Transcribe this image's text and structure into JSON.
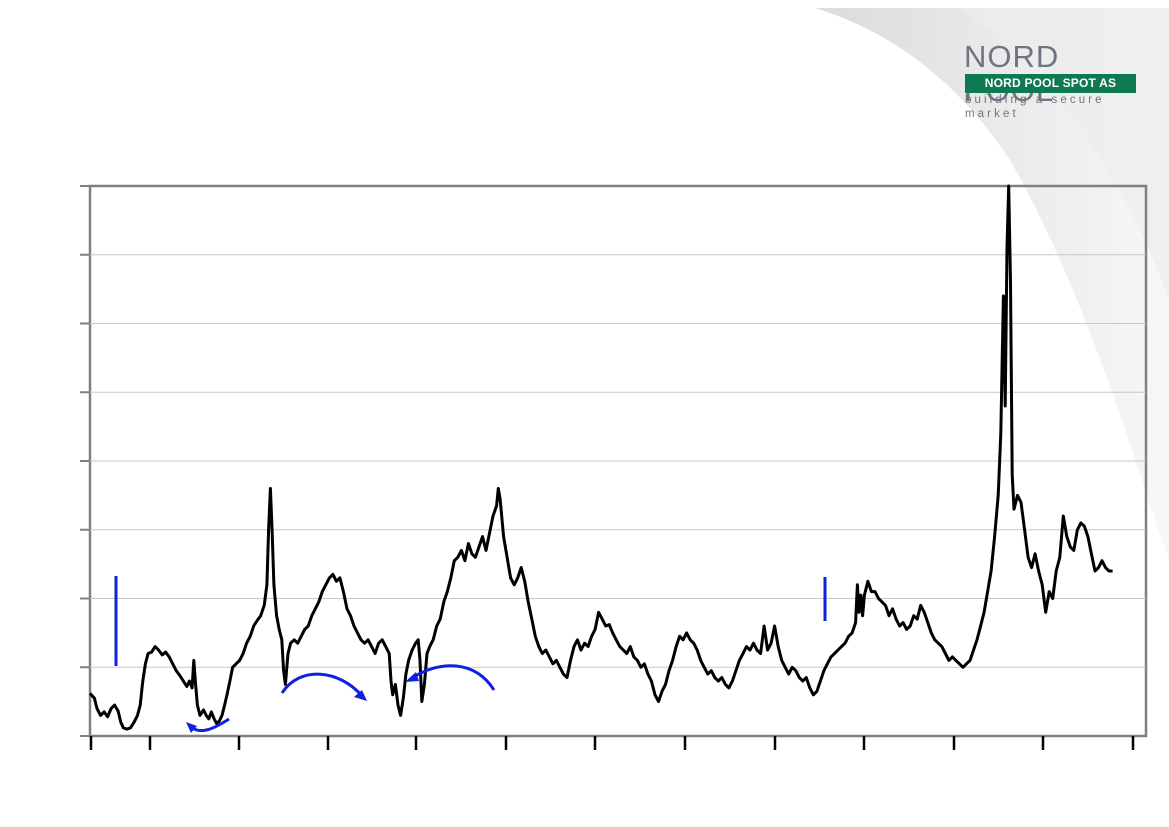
{
  "logo": {
    "name": "NORD POOL",
    "bar_text": "NORD POOL SPOT AS",
    "tagline": "building a secure market",
    "brand_color": "#0d7a52",
    "text_color": "#6f7580"
  },
  "chart_data": {
    "type": "line",
    "title": "",
    "xlabel": "",
    "ylabel": "",
    "grid": true,
    "legend": "none",
    "line_color": "#000000",
    "annotation_color": "#1020e0",
    "x_ticks": 12,
    "y_gridlines": 8,
    "xlim": [
      0,
      12
    ],
    "ylim": [
      0,
      8
    ],
    "series": [
      {
        "values": [
          [
            0.0,
            0.62
          ],
          [
            0.05,
            0.55
          ],
          [
            0.08,
            0.4
          ],
          [
            0.12,
            0.3
          ],
          [
            0.16,
            0.35
          ],
          [
            0.2,
            0.28
          ],
          [
            0.24,
            0.4
          ],
          [
            0.28,
            0.45
          ],
          [
            0.32,
            0.36
          ],
          [
            0.35,
            0.2
          ],
          [
            0.38,
            0.12
          ],
          [
            0.42,
            0.1
          ],
          [
            0.46,
            0.12
          ],
          [
            0.5,
            0.2
          ],
          [
            0.54,
            0.3
          ],
          [
            0.57,
            0.45
          ],
          [
            0.6,
            0.8
          ],
          [
            0.63,
            1.05
          ],
          [
            0.66,
            1.2
          ],
          [
            0.7,
            1.22
          ],
          [
            0.74,
            1.3
          ],
          [
            0.78,
            1.25
          ],
          [
            0.82,
            1.18
          ],
          [
            0.86,
            1.22
          ],
          [
            0.9,
            1.15
          ],
          [
            0.94,
            1.05
          ],
          [
            0.98,
            0.95
          ],
          [
            1.02,
            0.88
          ],
          [
            1.06,
            0.8
          ],
          [
            1.1,
            0.72
          ],
          [
            1.13,
            0.8
          ],
          [
            1.16,
            0.7
          ],
          [
            1.18,
            1.1
          ],
          [
            1.2,
            0.75
          ],
          [
            1.22,
            0.45
          ],
          [
            1.25,
            0.3
          ],
          [
            1.29,
            0.38
          ],
          [
            1.32,
            0.3
          ],
          [
            1.35,
            0.25
          ],
          [
            1.38,
            0.35
          ],
          [
            1.41,
            0.25
          ],
          [
            1.44,
            0.18
          ],
          [
            1.47,
            0.22
          ],
          [
            1.5,
            0.3
          ],
          [
            1.53,
            0.45
          ],
          [
            1.56,
            0.62
          ],
          [
            1.59,
            0.8
          ],
          [
            1.62,
            1.0
          ],
          [
            1.66,
            1.05
          ],
          [
            1.7,
            1.1
          ],
          [
            1.74,
            1.2
          ],
          [
            1.78,
            1.35
          ],
          [
            1.82,
            1.45
          ],
          [
            1.86,
            1.6
          ],
          [
            1.9,
            1.68
          ],
          [
            1.94,
            1.75
          ],
          [
            1.98,
            1.9
          ],
          [
            2.01,
            2.2
          ],
          [
            2.03,
            3.0
          ],
          [
            2.05,
            3.6
          ],
          [
            2.07,
            2.95
          ],
          [
            2.09,
            2.2
          ],
          [
            2.12,
            1.75
          ],
          [
            2.15,
            1.55
          ],
          [
            2.18,
            1.4
          ],
          [
            2.2,
            0.95
          ],
          [
            2.22,
            0.75
          ],
          [
            2.25,
            1.2
          ],
          [
            2.28,
            1.35
          ],
          [
            2.32,
            1.4
          ],
          [
            2.36,
            1.35
          ],
          [
            2.4,
            1.45
          ],
          [
            2.44,
            1.55
          ],
          [
            2.48,
            1.6
          ],
          [
            2.52,
            1.75
          ],
          [
            2.56,
            1.85
          ],
          [
            2.6,
            1.95
          ],
          [
            2.64,
            2.1
          ],
          [
            2.68,
            2.2
          ],
          [
            2.72,
            2.3
          ],
          [
            2.76,
            2.35
          ],
          [
            2.8,
            2.25
          ],
          [
            2.84,
            2.3
          ],
          [
            2.88,
            2.1
          ],
          [
            2.92,
            1.85
          ],
          [
            2.96,
            1.75
          ],
          [
            3.0,
            1.6
          ],
          [
            3.04,
            1.5
          ],
          [
            3.08,
            1.4
          ],
          [
            3.12,
            1.35
          ],
          [
            3.16,
            1.4
          ],
          [
            3.2,
            1.3
          ],
          [
            3.24,
            1.2
          ],
          [
            3.28,
            1.35
          ],
          [
            3.32,
            1.4
          ],
          [
            3.36,
            1.3
          ],
          [
            3.4,
            1.2
          ],
          [
            3.42,
            0.8
          ],
          [
            3.44,
            0.6
          ],
          [
            3.47,
            0.75
          ],
          [
            3.5,
            0.45
          ],
          [
            3.53,
            0.3
          ],
          [
            3.56,
            0.55
          ],
          [
            3.59,
            0.9
          ],
          [
            3.62,
            1.1
          ],
          [
            3.66,
            1.25
          ],
          [
            3.7,
            1.35
          ],
          [
            3.73,
            1.4
          ],
          [
            3.75,
            1.1
          ],
          [
            3.77,
            0.5
          ],
          [
            3.8,
            0.75
          ],
          [
            3.83,
            1.2
          ],
          [
            3.86,
            1.3
          ],
          [
            3.9,
            1.4
          ],
          [
            3.94,
            1.6
          ],
          [
            3.98,
            1.7
          ],
          [
            4.02,
            1.95
          ],
          [
            4.06,
            2.1
          ],
          [
            4.1,
            2.3
          ],
          [
            4.14,
            2.55
          ],
          [
            4.18,
            2.6
          ],
          [
            4.22,
            2.7
          ],
          [
            4.26,
            2.55
          ],
          [
            4.3,
            2.8
          ],
          [
            4.34,
            2.65
          ],
          [
            4.38,
            2.6
          ],
          [
            4.42,
            2.75
          ],
          [
            4.46,
            2.9
          ],
          [
            4.5,
            2.7
          ],
          [
            4.54,
            2.95
          ],
          [
            4.58,
            3.2
          ],
          [
            4.62,
            3.35
          ],
          [
            4.64,
            3.6
          ],
          [
            4.66,
            3.45
          ],
          [
            4.7,
            2.9
          ],
          [
            4.74,
            2.6
          ],
          [
            4.78,
            2.3
          ],
          [
            4.82,
            2.2
          ],
          [
            4.86,
            2.3
          ],
          [
            4.9,
            2.45
          ],
          [
            4.94,
            2.25
          ],
          [
            4.98,
            1.95
          ],
          [
            5.02,
            1.7
          ],
          [
            5.06,
            1.45
          ],
          [
            5.1,
            1.3
          ],
          [
            5.14,
            1.2
          ],
          [
            5.18,
            1.25
          ],
          [
            5.22,
            1.15
          ],
          [
            5.26,
            1.05
          ],
          [
            5.3,
            1.1
          ],
          [
            5.34,
            1.0
          ],
          [
            5.38,
            0.9
          ],
          [
            5.42,
            0.85
          ],
          [
            5.46,
            1.1
          ],
          [
            5.5,
            1.3
          ],
          [
            5.54,
            1.4
          ],
          [
            5.58,
            1.25
          ],
          [
            5.62,
            1.35
          ],
          [
            5.66,
            1.3
          ],
          [
            5.7,
            1.45
          ],
          [
            5.74,
            1.55
          ],
          [
            5.78,
            1.8
          ],
          [
            5.82,
            1.7
          ],
          [
            5.86,
            1.6
          ],
          [
            5.9,
            1.62
          ],
          [
            5.94,
            1.5
          ],
          [
            5.98,
            1.4
          ],
          [
            6.02,
            1.3
          ],
          [
            6.06,
            1.25
          ],
          [
            6.1,
            1.2
          ],
          [
            6.14,
            1.3
          ],
          [
            6.18,
            1.15
          ],
          [
            6.22,
            1.1
          ],
          [
            6.26,
            1.0
          ],
          [
            6.3,
            1.05
          ],
          [
            6.34,
            0.9
          ],
          [
            6.38,
            0.8
          ],
          [
            6.42,
            0.6
          ],
          [
            6.46,
            0.5
          ],
          [
            6.5,
            0.65
          ],
          [
            6.54,
            0.75
          ],
          [
            6.58,
            0.95
          ],
          [
            6.62,
            1.1
          ],
          [
            6.66,
            1.3
          ],
          [
            6.7,
            1.45
          ],
          [
            6.74,
            1.4
          ],
          [
            6.78,
            1.5
          ],
          [
            6.82,
            1.4
          ],
          [
            6.86,
            1.35
          ],
          [
            6.9,
            1.25
          ],
          [
            6.94,
            1.1
          ],
          [
            6.98,
            1.0
          ],
          [
            7.02,
            0.9
          ],
          [
            7.06,
            0.95
          ],
          [
            7.1,
            0.85
          ],
          [
            7.14,
            0.8
          ],
          [
            7.18,
            0.85
          ],
          [
            7.22,
            0.75
          ],
          [
            7.26,
            0.7
          ],
          [
            7.3,
            0.8
          ],
          [
            7.34,
            0.95
          ],
          [
            7.38,
            1.1
          ],
          [
            7.42,
            1.2
          ],
          [
            7.46,
            1.3
          ],
          [
            7.5,
            1.25
          ],
          [
            7.54,
            1.35
          ],
          [
            7.58,
            1.25
          ],
          [
            7.62,
            1.2
          ],
          [
            7.66,
            1.6
          ],
          [
            7.7,
            1.25
          ],
          [
            7.74,
            1.35
          ],
          [
            7.78,
            1.6
          ],
          [
            7.82,
            1.3
          ],
          [
            7.86,
            1.1
          ],
          [
            7.9,
            1.0
          ],
          [
            7.94,
            0.9
          ],
          [
            7.98,
            1.0
          ],
          [
            8.02,
            0.95
          ],
          [
            8.06,
            0.85
          ],
          [
            8.1,
            0.8
          ],
          [
            8.14,
            0.85
          ],
          [
            8.18,
            0.7
          ],
          [
            8.22,
            0.6
          ],
          [
            8.26,
            0.65
          ],
          [
            8.3,
            0.8
          ],
          [
            8.34,
            0.95
          ],
          [
            8.38,
            1.05
          ],
          [
            8.42,
            1.15
          ],
          [
            8.46,
            1.2
          ],
          [
            8.5,
            1.25
          ],
          [
            8.54,
            1.3
          ],
          [
            8.58,
            1.35
          ],
          [
            8.62,
            1.45
          ],
          [
            8.66,
            1.5
          ],
          [
            8.7,
            1.65
          ],
          [
            8.72,
            2.2
          ],
          [
            8.74,
            1.8
          ],
          [
            8.76,
            2.05
          ],
          [
            8.78,
            1.75
          ],
          [
            8.8,
            2.05
          ],
          [
            8.84,
            2.25
          ],
          [
            8.88,
            2.1
          ],
          [
            8.92,
            2.1
          ],
          [
            8.96,
            2.0
          ],
          [
            9.0,
            1.95
          ],
          [
            9.04,
            1.9
          ],
          [
            9.08,
            1.75
          ],
          [
            9.12,
            1.85
          ],
          [
            9.16,
            1.7
          ],
          [
            9.2,
            1.6
          ],
          [
            9.24,
            1.65
          ],
          [
            9.28,
            1.55
          ],
          [
            9.32,
            1.6
          ],
          [
            9.36,
            1.75
          ],
          [
            9.4,
            1.7
          ],
          [
            9.44,
            1.9
          ],
          [
            9.48,
            1.8
          ],
          [
            9.52,
            1.65
          ],
          [
            9.56,
            1.5
          ],
          [
            9.6,
            1.4
          ],
          [
            9.64,
            1.35
          ],
          [
            9.68,
            1.3
          ],
          [
            9.72,
            1.2
          ],
          [
            9.76,
            1.1
          ],
          [
            9.8,
            1.15
          ],
          [
            9.84,
            1.1
          ],
          [
            9.88,
            1.05
          ],
          [
            9.92,
            1.0
          ],
          [
            9.96,
            1.05
          ],
          [
            10.0,
            1.1
          ],
          [
            10.04,
            1.25
          ],
          [
            10.08,
            1.4
          ],
          [
            10.12,
            1.6
          ],
          [
            10.16,
            1.8
          ],
          [
            10.2,
            2.1
          ],
          [
            10.24,
            2.4
          ],
          [
            10.28,
            2.9
          ],
          [
            10.32,
            3.5
          ],
          [
            10.35,
            4.4
          ],
          [
            10.38,
            6.4
          ],
          [
            10.4,
            4.8
          ],
          [
            10.42,
            7.1
          ],
          [
            10.44,
            8.0
          ],
          [
            10.46,
            6.6
          ],
          [
            10.48,
            3.8
          ],
          [
            10.5,
            3.3
          ],
          [
            10.54,
            3.5
          ],
          [
            10.58,
            3.4
          ],
          [
            10.62,
            3.0
          ],
          [
            10.66,
            2.6
          ],
          [
            10.7,
            2.45
          ],
          [
            10.74,
            2.65
          ],
          [
            10.78,
            2.4
          ],
          [
            10.82,
            2.2
          ],
          [
            10.86,
            1.8
          ],
          [
            10.9,
            2.1
          ],
          [
            10.94,
            2.0
          ],
          [
            10.98,
            2.4
          ],
          [
            11.02,
            2.6
          ],
          [
            11.06,
            3.2
          ],
          [
            11.1,
            2.9
          ],
          [
            11.14,
            2.75
          ],
          [
            11.18,
            2.7
          ],
          [
            11.22,
            3.0
          ],
          [
            11.26,
            3.1
          ],
          [
            11.3,
            3.05
          ],
          [
            11.34,
            2.9
          ],
          [
            11.38,
            2.65
          ],
          [
            11.42,
            2.4
          ],
          [
            11.46,
            2.45
          ],
          [
            11.5,
            2.55
          ],
          [
            11.54,
            2.45
          ],
          [
            11.58,
            2.4
          ],
          [
            11.62,
            2.4
          ]
        ]
      }
    ]
  }
}
